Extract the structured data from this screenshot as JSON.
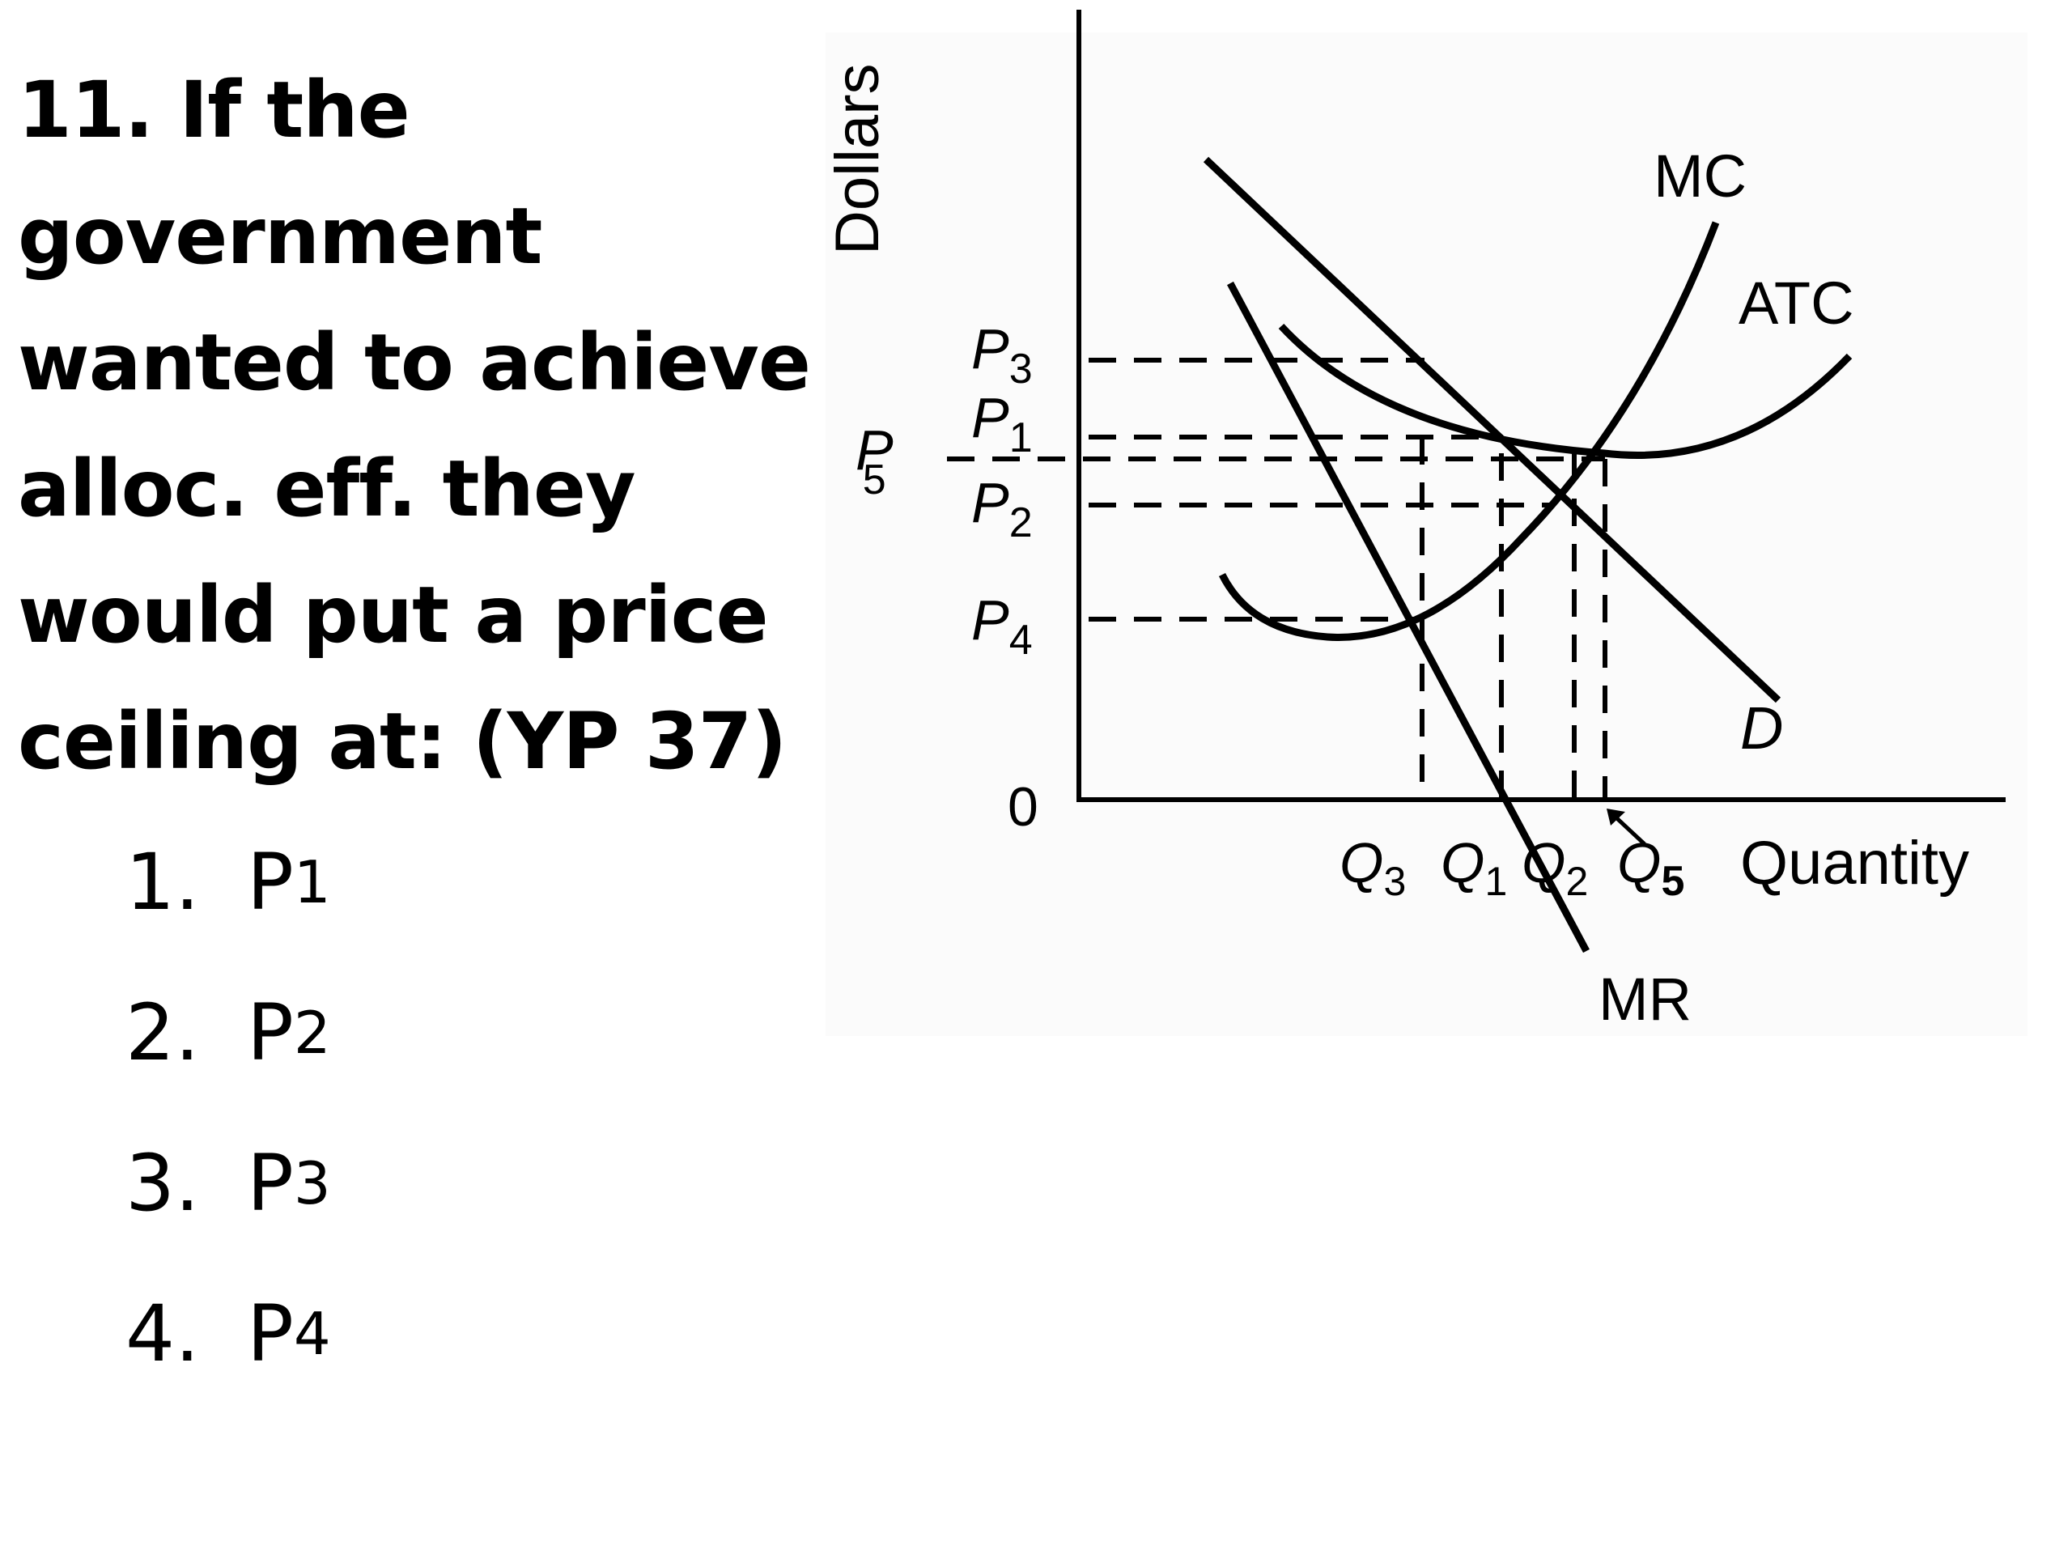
{
  "question": "11. If the government wanted to achieve alloc. eff. they would put a price ceiling at: (YP 37)",
  "options": [
    {
      "num": "1.",
      "main": "P",
      "sub": "1"
    },
    {
      "num": "2.",
      "main": "P",
      "sub": "2"
    },
    {
      "num": "3.",
      "main": "P",
      "sub": "3"
    },
    {
      "num": "4.",
      "main": "P",
      "sub": "4"
    }
  ],
  "chart_data": {
    "type": "line",
    "xlabel": "Quantity",
    "ylabel": "Dollars",
    "origin_label": "0",
    "series": [
      {
        "name": "MC"
      },
      {
        "name": "ATC"
      },
      {
        "name": "D"
      },
      {
        "name": "MR"
      }
    ],
    "price_labels": [
      {
        "main": "P",
        "sub": "3"
      },
      {
        "main": "P",
        "sub": "1"
      },
      {
        "main": "P",
        "sub": "5"
      },
      {
        "main": "P",
        "sub": "2"
      },
      {
        "main": "P",
        "sub": "4"
      }
    ],
    "quantity_labels": [
      {
        "main": "Q",
        "sub": "3"
      },
      {
        "main": "Q",
        "sub": "1"
      },
      {
        "main": "Q",
        "sub": "2"
      },
      {
        "main": "Q",
        "sub": "5"
      }
    ],
    "price_order_high_to_low": [
      "P3",
      "P1",
      "P5",
      "P2",
      "P4"
    ],
    "quantity_order_low_to_high": [
      "Q3",
      "Q1",
      "Q2",
      "Q5"
    ]
  }
}
